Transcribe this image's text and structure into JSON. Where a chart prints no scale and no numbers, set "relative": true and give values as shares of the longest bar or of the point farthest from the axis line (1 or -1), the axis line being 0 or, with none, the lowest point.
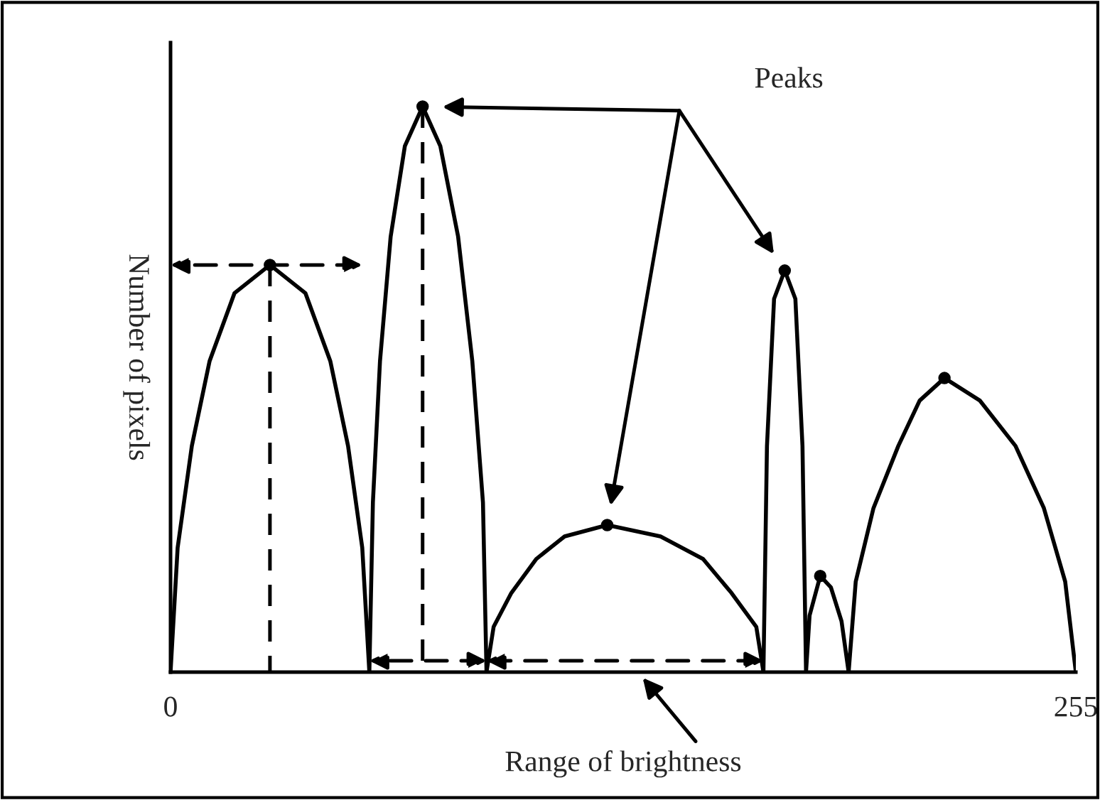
{
  "chart_data": {
    "type": "line",
    "relative": true,
    "xlabel": "Range of brightness",
    "ylabel": "Number of pixels",
    "xlim": [
      0,
      255
    ],
    "xticks": [
      0,
      255
    ],
    "tick_labels": "x",
    "annotations": [
      "Peaks"
    ],
    "series": [
      {
        "type": "line",
        "color": "#000000",
        "marker": "none",
        "x": [
          0,
          2,
          6,
          11,
          18,
          28,
          38,
          45,
          50,
          54,
          56,
          57,
          59,
          62,
          66,
          71,
          76,
          81,
          85,
          88,
          89,
          91,
          96,
          103,
          111,
          123,
          138,
          150,
          158,
          165,
          167,
          168,
          170,
          173,
          176,
          178,
          179,
          180,
          183,
          186,
          189,
          191,
          193,
          198,
          205,
          211,
          218,
          228,
          238,
          246,
          252,
          255
        ],
        "values": [
          0,
          0.22,
          0.4,
          0.55,
          0.67,
          0.72,
          0.67,
          0.55,
          0.4,
          0.22,
          0,
          0.3,
          0.55,
          0.77,
          0.93,
          1,
          0.93,
          0.77,
          0.55,
          0.3,
          0,
          0.08,
          0.14,
          0.2,
          0.24,
          0.26,
          0.24,
          0.2,
          0.14,
          0.08,
          0,
          0.4,
          0.66,
          0.71,
          0.66,
          0.4,
          0,
          0.1,
          0.17,
          0.15,
          0.09,
          0,
          0.16,
          0.29,
          0.4,
          0.48,
          0.52,
          0.48,
          0.4,
          0.29,
          0.16,
          0
        ]
      },
      {
        "color": "#000000",
        "marker": "none",
        "line_style": "dashed",
        "x": [
          28,
          28
        ],
        "values": [
          0.72,
          0
        ]
      },
      {
        "color": "#000000",
        "marker": "none",
        "line_style": "dashed",
        "x": [
          71,
          71
        ],
        "values": [
          1,
          0
        ]
      },
      {
        "type": "scatter",
        "color": "#000000",
        "marker": "circle",
        "x": [
          28,
          71,
          123,
          173,
          183,
          218
        ],
        "values": [
          0.72,
          1,
          0.26,
          0.71,
          0.17,
          0.52
        ]
      }
    ]
  }
}
